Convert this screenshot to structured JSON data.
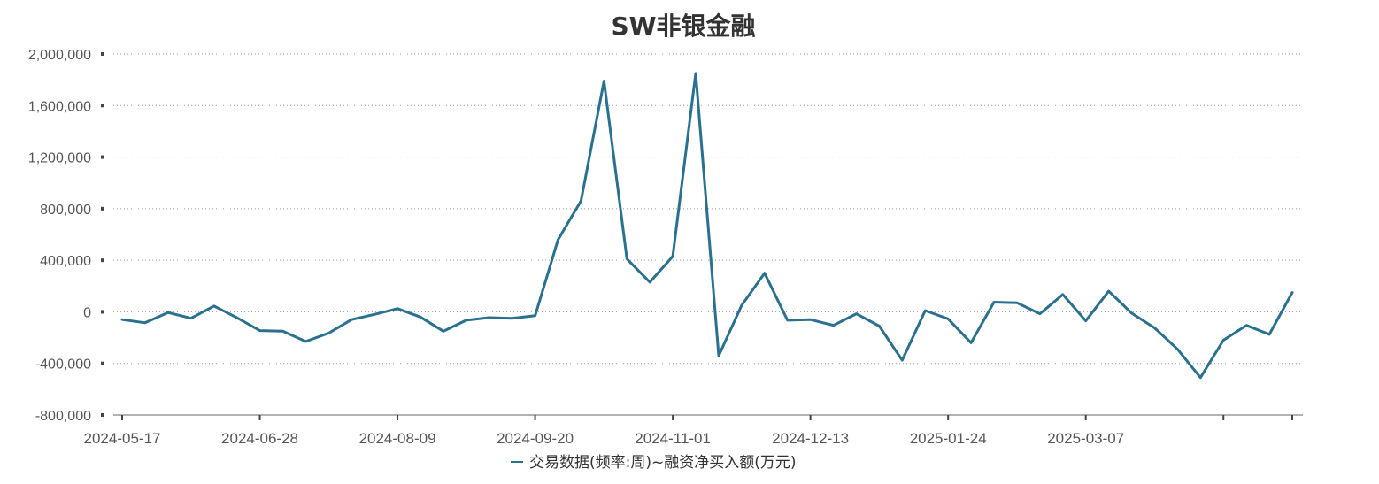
{
  "chart_data": {
    "type": "line",
    "title": "SW非银金融",
    "xlabel": "",
    "ylabel": "",
    "ylim": [
      -800000,
      2000000
    ],
    "yticks": [
      2000000,
      1600000,
      1200000,
      800000,
      400000,
      0,
      -400000,
      -800000
    ],
    "ytick_labels": [
      "2,000,000",
      "1,600,000",
      "1,200,000",
      "800,000",
      "400,000",
      "0",
      "-400,000",
      "-800,000"
    ],
    "xtick_labels": [
      "2024-05-17",
      "2024-06-28",
      "2024-08-09",
      "2024-09-20",
      "2024-11-01",
      "2024-12-13",
      "2025-01-24",
      "2025-03-07",
      "",
      ""
    ],
    "xtick_positions": [
      0,
      6,
      12,
      18,
      24,
      30,
      36,
      42,
      48,
      51
    ],
    "grid": true,
    "legend": "bottom-center",
    "color": "#2a7190",
    "series": [
      {
        "name": "交易数据(频率:周)~融资净买入额(万元)",
        "values": [
          -60000,
          -85000,
          -5000,
          -50000,
          45000,
          -45000,
          -145000,
          -150000,
          -230000,
          -165000,
          -60000,
          -20000,
          25000,
          -40000,
          -150000,
          -65000,
          -45000,
          -50000,
          -30000,
          560000,
          860000,
          1790000,
          410000,
          230000,
          430000,
          1850000,
          -340000,
          50000,
          300000,
          -65000,
          -60000,
          -105000,
          -15000,
          -110000,
          -375000,
          10000,
          -55000,
          -240000,
          75000,
          70000,
          -15000,
          135000,
          -70000,
          160000,
          -10000,
          -125000,
          -290000,
          -510000,
          -220000,
          -105000,
          -175000,
          150000
        ]
      }
    ]
  }
}
